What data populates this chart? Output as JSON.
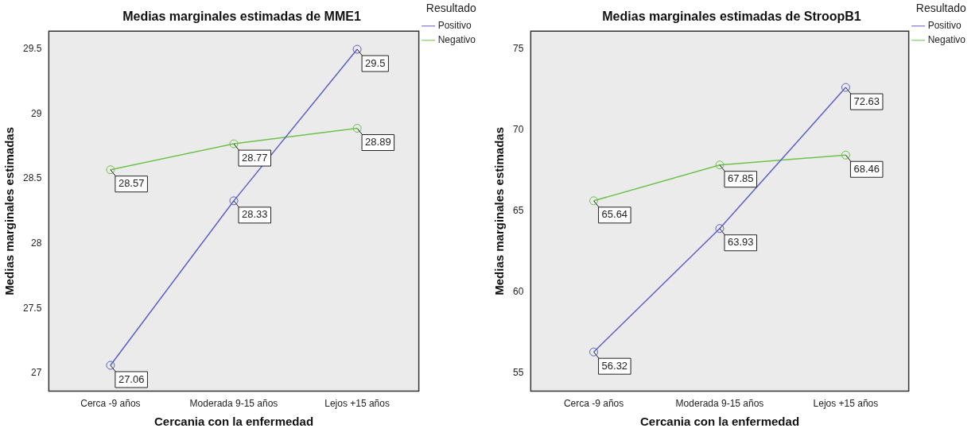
{
  "chart_data": [
    {
      "type": "line",
      "title": "Medias marginales estimadas de MME1",
      "xlabel": "Cercania con la enfermedad",
      "ylabel": "Medias marginales estimadas",
      "legend_title": "Resultado",
      "categories": [
        "Cerca -9 años",
        "Moderada 9-15 años",
        "Lejos +15 años"
      ],
      "series": [
        {
          "name": "Positivo",
          "color": "#5b5fc7",
          "values": [
            27.06,
            28.33,
            29.5
          ]
        },
        {
          "name": "Negativo",
          "color": "#6cc24a",
          "values": [
            28.57,
            28.77,
            28.89
          ]
        }
      ],
      "ylim": [
        26.86,
        29.64
      ],
      "yticks": [
        27,
        27.5,
        28,
        28.5,
        29,
        29.5
      ],
      "grid": false,
      "legend": "top right",
      "marker": "circle",
      "line_style": "solid",
      "data_labels": true
    },
    {
      "type": "line",
      "title": "Medias marginales estimadas de StroopB1",
      "xlabel": "Cercania con la enfermedad",
      "ylabel": "Medias marginales estimadas",
      "legend_title": "Resultado",
      "categories": [
        "Cerca -9 años",
        "Moderada 9-15 años",
        "Lejos +15 años"
      ],
      "series": [
        {
          "name": "Positivo",
          "color": "#5b5fc7",
          "values": [
            56.32,
            63.93,
            72.63
          ]
        },
        {
          "name": "Negativo",
          "color": "#6cc24a",
          "values": [
            65.64,
            67.85,
            68.46
          ]
        }
      ],
      "ylim": [
        53.9,
        76.1
      ],
      "yticks": [
        55,
        60,
        65,
        70,
        75
      ],
      "grid": false,
      "legend": "top right",
      "marker": "circle",
      "line_style": "solid",
      "data_labels": true
    }
  ]
}
